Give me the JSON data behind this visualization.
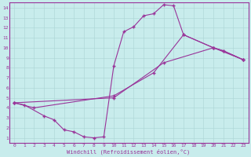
{
  "xlabel": "Windchill (Refroidissement éolien,°C)",
  "bg_color": "#c8ecec",
  "grid_color": "#b0d8d8",
  "line_color": "#993399",
  "xlim": [
    -0.5,
    23.5
  ],
  "ylim": [
    0.5,
    14.5
  ],
  "xticks": [
    0,
    1,
    2,
    3,
    4,
    5,
    6,
    7,
    8,
    9,
    10,
    11,
    12,
    13,
    14,
    15,
    16,
    17,
    18,
    19,
    20,
    21,
    22,
    23
  ],
  "yticks": [
    1,
    2,
    3,
    4,
    5,
    6,
    7,
    8,
    9,
    10,
    11,
    12,
    13,
    14
  ],
  "curve1_x": [
    0,
    1,
    3,
    4,
    5,
    6,
    7,
    8,
    9,
    10,
    11,
    12,
    13,
    14,
    15,
    16,
    17,
    20,
    21,
    23
  ],
  "curve1_y": [
    4.5,
    4.3,
    3.2,
    2.8,
    1.8,
    1.6,
    1.1,
    1.0,
    1.1,
    8.2,
    11.6,
    12.1,
    13.2,
    13.4,
    14.3,
    14.2,
    11.3,
    10.0,
    9.7,
    8.8
  ],
  "curve2_x": [
    0,
    2,
    10,
    14,
    17,
    20,
    21,
    23
  ],
  "curve2_y": [
    4.5,
    4.0,
    5.2,
    7.5,
    11.3,
    10.0,
    9.7,
    8.8
  ],
  "curve3_x": [
    0,
    10,
    15,
    20,
    23
  ],
  "curve3_y": [
    4.5,
    5.0,
    8.5,
    10.0,
    8.8
  ]
}
